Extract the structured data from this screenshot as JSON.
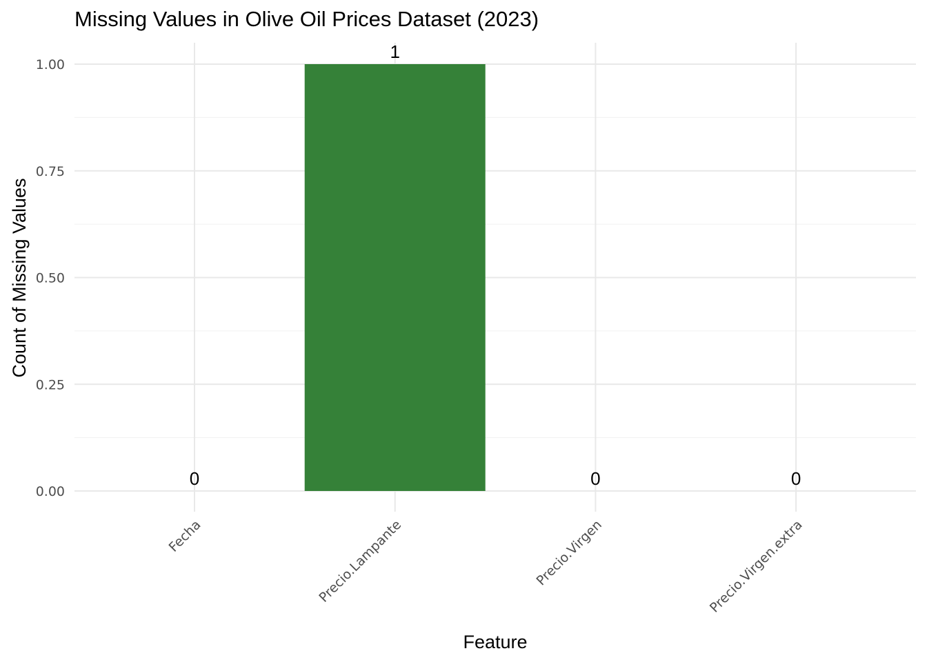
{
  "chart_data": {
    "type": "bar",
    "title": "Missing Values in Olive Oil Prices Dataset (2023)",
    "xlabel": "Feature",
    "ylabel": "Count of Missing Values",
    "categories": [
      "Fecha",
      "Precio.Lampante",
      "Precio.Virgen",
      "Precio.Virgen.extra"
    ],
    "values": [
      0,
      1,
      0,
      0
    ],
    "data_labels": [
      "0",
      "1",
      "0",
      "0"
    ],
    "ylim": [
      0,
      1
    ],
    "yticks": [
      "0.00",
      "0.25",
      "0.50",
      "0.75",
      "1.00"
    ],
    "grid": true,
    "legend": "none",
    "bar_color": "#2e7d32",
    "bar_opacity": 0.97
  }
}
